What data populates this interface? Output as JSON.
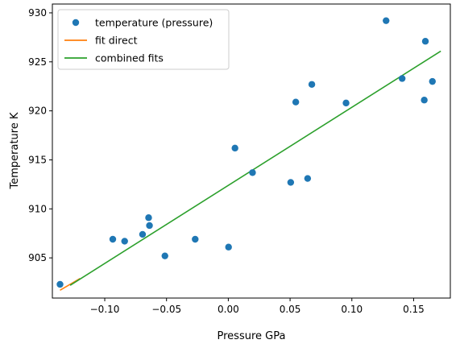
{
  "chart_data": {
    "type": "scatter",
    "xlabel": "Pressure GPa",
    "ylabel": "Temperature K",
    "xlim": [
      -0.1424,
      0.1797
    ],
    "ylim": [
      900.9,
      930.9
    ],
    "x_ticks": [
      -0.1,
      -0.05,
      0.0,
      0.05,
      0.1,
      0.15
    ],
    "x_tick_labels": [
      "−0.10",
      "−0.05",
      "0.00",
      "0.05",
      "0.10",
      "0.15"
    ],
    "y_ticks": [
      905,
      910,
      915,
      920,
      925,
      930
    ],
    "y_tick_labels": [
      "905",
      "910",
      "915",
      "920",
      "925",
      "930"
    ],
    "grid": false,
    "legend_position": "top-left",
    "series": [
      {
        "name": "temperature (pressure)",
        "kind": "scatter",
        "color": "#1f77b4",
        "points": [
          [
            -0.1362,
            902.3
          ],
          [
            -0.0935,
            906.9
          ],
          [
            -0.0839,
            906.7
          ],
          [
            -0.0694,
            907.4
          ],
          [
            -0.0645,
            909.1
          ],
          [
            -0.0638,
            908.3
          ],
          [
            -0.0513,
            905.2
          ],
          [
            -0.0268,
            906.9
          ],
          [
            0.0002,
            906.1
          ],
          [
            0.0054,
            916.2
          ],
          [
            0.0196,
            913.7
          ],
          [
            0.0505,
            912.7
          ],
          [
            0.0546,
            920.9
          ],
          [
            0.0642,
            913.1
          ],
          [
            0.0676,
            922.7
          ],
          [
            0.0953,
            920.8
          ],
          [
            0.1277,
            929.2
          ],
          [
            0.1407,
            923.3
          ],
          [
            0.1586,
            921.1
          ],
          [
            0.1595,
            927.1
          ],
          [
            0.1652,
            923.0
          ]
        ]
      },
      {
        "name": "fit direct",
        "kind": "line",
        "color": "#ff7f0e",
        "points": [
          [
            -0.1362,
            901.7
          ],
          [
            -0.12,
            902.9
          ]
        ]
      },
      {
        "name": "combined fits",
        "kind": "line",
        "color": "#2ca02c",
        "points": [
          [
            -0.128,
            902.2
          ],
          [
            0.172,
            926.1
          ]
        ]
      }
    ]
  }
}
